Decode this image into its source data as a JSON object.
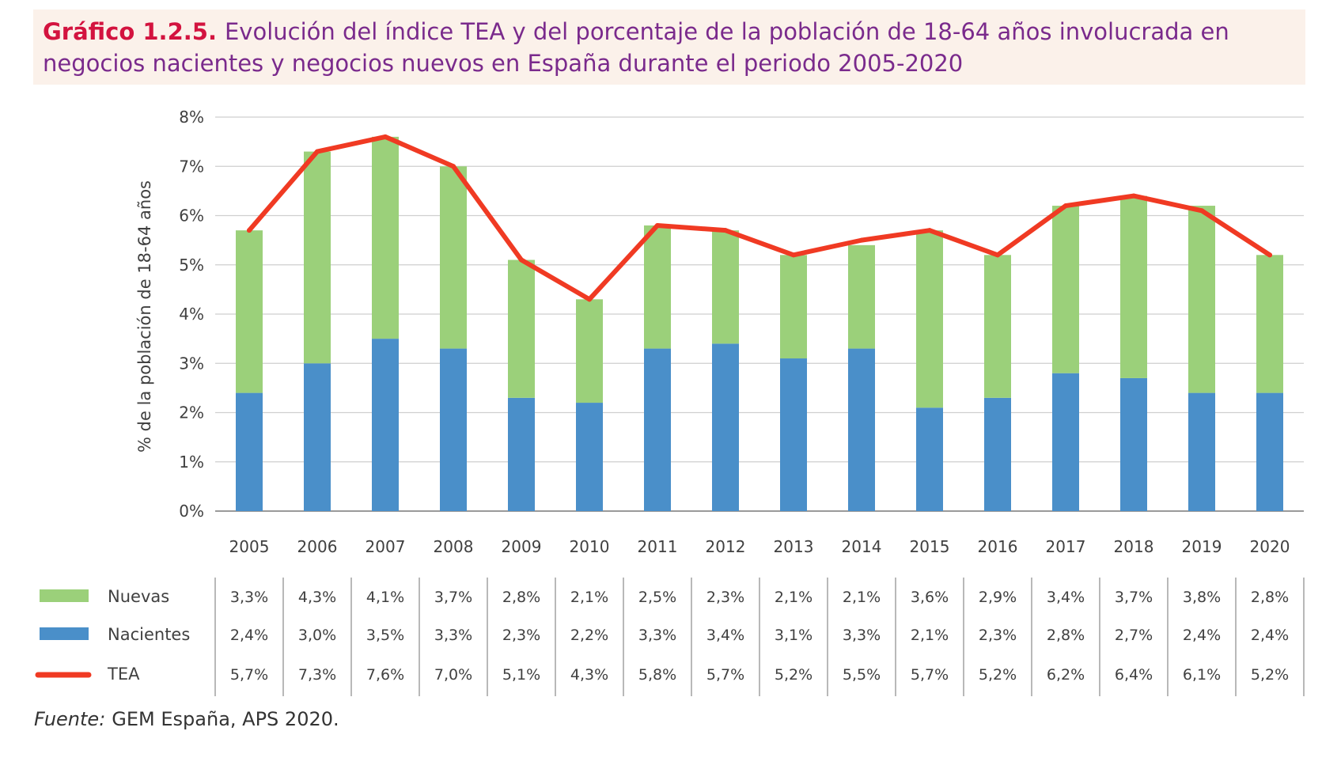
{
  "title": {
    "prefix": "Gráfico 1.2.5.",
    "line1": "Evolución del índice TEA y del porcentaje de la población de 18-64 años involucrada en",
    "line2": "negocios nacientes y negocios nuevos en España durante el periodo 2005-2020"
  },
  "source": {
    "prefix": "Fuente:",
    "text": "GEM España, APS 2020."
  },
  "colors": {
    "nuevas": "#9bd07a",
    "nacientes": "#4a8fc9",
    "tea": "#f03a23",
    "grid": "#cfcfcf",
    "title": "#7a2a8c",
    "title_prefix": "#d3133f"
  },
  "chart_data": {
    "type": "bar",
    "stacked": true,
    "ylabel": "% de la población de 18-64 años",
    "ylim": [
      0,
      8
    ],
    "y_ticks": [
      "0%",
      "1%",
      "2%",
      "3%",
      "4%",
      "5%",
      "6%",
      "7%",
      "8%"
    ],
    "grid": true,
    "categories": [
      "2005",
      "2006",
      "2007",
      "2008",
      "2009",
      "2010",
      "2011",
      "2012",
      "2013",
      "2014",
      "2015",
      "2016",
      "2017",
      "2018",
      "2019",
      "2020"
    ],
    "series": [
      {
        "name": "Nacientes",
        "kind": "bar",
        "values": [
          2.4,
          3.0,
          3.5,
          3.3,
          2.3,
          2.2,
          3.3,
          3.4,
          3.1,
          3.3,
          2.1,
          2.3,
          2.8,
          2.7,
          2.4,
          2.4
        ],
        "labels": [
          "2,4%",
          "3,0%",
          "3,5%",
          "3,3%",
          "2,3%",
          "2,2%",
          "3,3%",
          "3,4%",
          "3,1%",
          "3,3%",
          "2,1%",
          "2,3%",
          "2,8%",
          "2,7%",
          "2,4%",
          "2,4%"
        ]
      },
      {
        "name": "Nuevas",
        "kind": "bar",
        "values": [
          3.3,
          4.3,
          4.1,
          3.7,
          2.8,
          2.1,
          2.5,
          2.3,
          2.1,
          2.1,
          3.6,
          2.9,
          3.4,
          3.7,
          3.8,
          2.8
        ],
        "labels": [
          "3,3%",
          "4,3%",
          "4,1%",
          "3,7%",
          "2,8%",
          "2,1%",
          "2,5%",
          "2,3%",
          "2,1%",
          "2,1%",
          "3,6%",
          "2,9%",
          "3,4%",
          "3,7%",
          "3,8%",
          "2,8%"
        ]
      },
      {
        "name": "TEA",
        "kind": "line",
        "values": [
          5.7,
          7.3,
          7.6,
          7.0,
          5.1,
          4.3,
          5.8,
          5.7,
          5.2,
          5.5,
          5.7,
          5.2,
          6.2,
          6.4,
          6.1,
          5.2
        ],
        "labels": [
          "5,7%",
          "7,3%",
          "7,6%",
          "7,0%",
          "5,1%",
          "4,3%",
          "5,8%",
          "5,7%",
          "5,2%",
          "5,5%",
          "5,7%",
          "5,2%",
          "6,2%",
          "6,4%",
          "6,1%",
          "5,2%"
        ]
      }
    ],
    "table_order": [
      "Nuevas",
      "Nacientes",
      "TEA"
    ]
  }
}
